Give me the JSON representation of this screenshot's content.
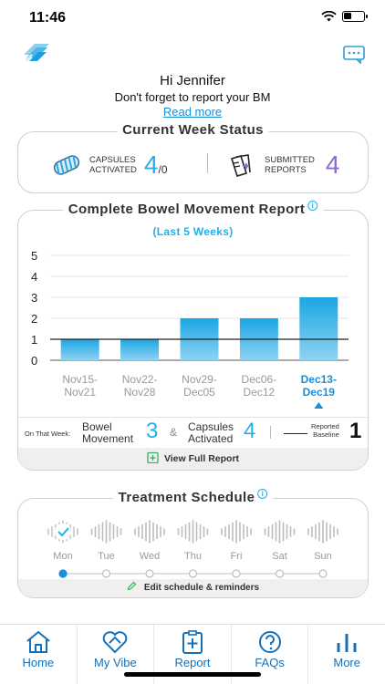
{
  "status_bar": {
    "time": "11:46"
  },
  "header": {
    "logo_icon": "brand-logo-icon",
    "chat_icon": "chat-icon"
  },
  "greeting": {
    "hi": "Hi Jennifer",
    "message": "Don't forget to report your BM",
    "link": "Read more"
  },
  "week_status": {
    "title": "Current Week Status",
    "capsules_label_1": "CAPSULES",
    "capsules_label_2": "ACTIVATED",
    "capsules_value": "4",
    "capsules_total": "/0",
    "reports_label_1": "SUBMITTED",
    "reports_label_2": "REPORTS",
    "reports_value": "4"
  },
  "report": {
    "title": "Complete Bowel Movement Report",
    "subtitle": "(Last 5 Weeks)",
    "on_that_week": "On That Week:",
    "bm_label_1": "Bowel",
    "bm_label_2": "Movement",
    "bm_value": "3",
    "amp": "&",
    "cap_label_1": "Capsules",
    "cap_label_2": "Activated",
    "cap_value": "4",
    "baseline_label_1": "Reported",
    "baseline_label_2": "Baseline",
    "baseline_value": "1",
    "view_full": "View Full Report"
  },
  "chart_data": {
    "type": "bar",
    "categories": [
      "Nov15-Nov21",
      "Nov22-Nov28",
      "Nov29-Dec05",
      "Dec06-Dec12",
      "Dec13-Dec19"
    ],
    "category_lines": [
      [
        "Nov15-",
        "Nov21"
      ],
      [
        "Nov22-",
        "Nov28"
      ],
      [
        "Nov29-",
        "Dec05"
      ],
      [
        "Dec06-",
        "Dec12"
      ],
      [
        "Dec13-",
        "Dec19"
      ]
    ],
    "values": [
      1,
      1,
      2,
      2,
      3
    ],
    "selected_index": 4,
    "baseline": 1,
    "ylim": [
      0,
      5
    ],
    "yticks": [
      0,
      1,
      2,
      3,
      4,
      5
    ],
    "grid": true,
    "bar_colors": [
      "#1aa6e4",
      "#8fd3f2"
    ]
  },
  "schedule": {
    "title": "Treatment Schedule",
    "days": [
      "Mon",
      "Tue",
      "Wed",
      "Thu",
      "Fri",
      "Sat",
      "Sun"
    ],
    "done_index": 0,
    "edit": "Edit schedule & reminders"
  },
  "tabs": [
    {
      "label": "Home",
      "icon": "home-icon"
    },
    {
      "label": "My Vibe",
      "icon": "heart-icon"
    },
    {
      "label": "Report",
      "icon": "report-icon"
    },
    {
      "label": "FAQs",
      "icon": "question-icon"
    },
    {
      "label": "More",
      "icon": "more-icon"
    }
  ],
  "colors": {
    "accent": "#23b0e8",
    "purple": "#8a6ad6",
    "tab": "#1570b8"
  }
}
